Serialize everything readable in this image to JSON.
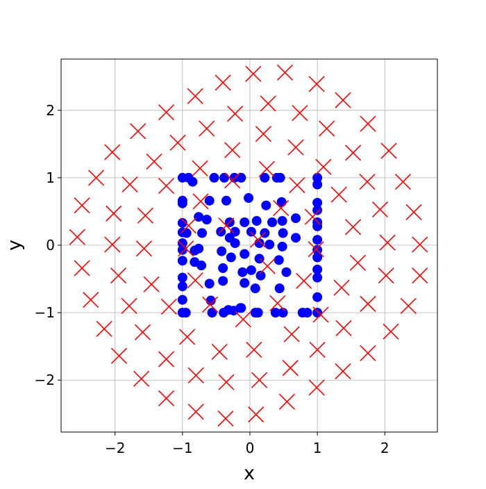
{
  "chart_data": {
    "type": "scatter",
    "xlabel": "x",
    "ylabel": "y",
    "grid": true,
    "xlim": [
      -2.8,
      2.78
    ],
    "ylim": [
      -2.77,
      2.76
    ],
    "xticks": [
      {
        "value": -2,
        "label": "−2"
      },
      {
        "value": -1,
        "label": "−1"
      },
      0,
      1,
      2
    ],
    "yticks": [
      {
        "value": -2,
        "label": "−2"
      },
      {
        "value": -1,
        "label": "−1"
      },
      0,
      1,
      2
    ],
    "series": [
      {
        "color": "#0000ff",
        "marker": "o",
        "x": [
          -1.0,
          -0.91,
          -0.85,
          -0.53,
          -0.38,
          -0.23,
          -0.13,
          0.22,
          0.4,
          0.45,
          1.0,
          1.0,
          -1.0,
          -1.0,
          -1.0,
          -1.0,
          -1.0,
          -1.0,
          -1.0,
          -1.0,
          -1.0,
          -1.0,
          -1.0,
          -0.95,
          -0.56,
          -0.39,
          -0.24,
          -0.13,
          0.08,
          0.12,
          0.38,
          0.49,
          0.78,
          0.85,
          1.0,
          1.0,
          1.0,
          1.0,
          1.0,
          1.0,
          1.0,
          1.0,
          1.0,
          1.0,
          1.0,
          -0.94,
          -0.76,
          -0.64,
          -0.6,
          -0.71,
          -0.76,
          -0.82,
          -0.72,
          -0.6,
          -0.58,
          -0.43,
          -0.35,
          -0.3,
          -0.22,
          -0.3,
          -0.08,
          -0.02,
          0.02,
          0.1,
          0.22,
          0.24,
          0.33,
          0.47,
          0.48,
          0.68,
          0.49,
          0.14,
          0.29,
          0.48,
          0.68,
          -0.42,
          -0.28,
          -0.22,
          -0.08,
          0.02,
          -0.08,
          -0.4,
          -0.4,
          -0.11,
          0.14,
          0.16,
          0.43,
          0.54,
          0.08,
          0.44,
          -0.32,
          -0.14,
          -0.82
        ],
        "values": [
          1.0,
          1.0,
          0.94,
          1.0,
          1.0,
          1.0,
          1.0,
          1.0,
          1.0,
          1.0,
          1.0,
          0.9,
          0.66,
          0.62,
          0.33,
          0.19,
          0.03,
          -0.07,
          -0.23,
          -0.48,
          -0.61,
          -0.81,
          -1.0,
          -1.0,
          -1.0,
          -1.0,
          -0.97,
          -0.93,
          -1.0,
          -1.0,
          -1.0,
          -1.0,
          -1.0,
          -1.0,
          -1.0,
          0.63,
          0.52,
          0.34,
          0.28,
          0.08,
          -0.07,
          -0.18,
          -0.36,
          -0.48,
          -0.77,
          0.18,
          0.42,
          0.38,
          0.66,
          0.18,
          -0.05,
          -0.25,
          -0.3,
          -0.57,
          -0.82,
          0.2,
          0.66,
          0.34,
          0.2,
          0.11,
          0.34,
          0.7,
          0.2,
          0.36,
          0.18,
          0.59,
          0.34,
          0.64,
          0.36,
          0.4,
          0.18,
          0.03,
          0.01,
          -0.02,
          0.11,
          -0.09,
          -0.18,
          0.03,
          -0.13,
          -0.37,
          -0.56,
          -0.34,
          -0.53,
          -0.4,
          -0.2,
          -0.45,
          -0.22,
          -0.4,
          -0.64,
          -0.64,
          -0.96,
          -0.93,
          -0.08
        ]
      },
      {
        "color": "#ff0000",
        "marker": "x",
        "x": [
          0.05,
          0.52,
          0.99,
          1.38,
          1.75,
          2.06,
          2.27,
          2.43,
          2.52,
          2.52,
          2.35,
          2.09,
          1.75,
          1.38,
          0.99,
          0.55,
          0.09,
          -0.36,
          -0.8,
          -1.24,
          -1.61,
          -1.94,
          -2.16,
          -2.36,
          -2.49,
          -2.56,
          -2.49,
          -2.28,
          -2.04,
          -1.66,
          -1.24,
          -0.81,
          -0.4,
          -0.22,
          0.27,
          0.74,
          1.14,
          1.53,
          1.74,
          1.93,
          2.04,
          2.02,
          1.75,
          1.39,
          1.0,
          0.6,
          0.14,
          -0.35,
          -0.8,
          -1.24,
          -1.59,
          -1.79,
          -1.95,
          -2.04,
          -2.02,
          -1.78,
          -1.42,
          -1.07,
          -0.64,
          0.2,
          0.68,
          1.09,
          1.32,
          1.53,
          1.6,
          1.36,
          1.05,
          0.62,
          0.06,
          -0.45,
          -0.93,
          -1.2,
          -1.46,
          -1.57,
          -1.55,
          -1.24,
          -0.74,
          -0.26,
          0.25,
          0.7,
          0.93,
          0.98,
          0.8,
          0.41,
          -0.1,
          -0.59,
          -0.81,
          -0.95,
          -0.91,
          -0.73,
          -0.26,
          0.12,
          -0.35,
          0.26,
          0.46
        ],
        "values": [
          2.54,
          2.56,
          2.39,
          2.15,
          1.8,
          1.4,
          0.94,
          0.49,
          0.01,
          -0.45,
          -0.9,
          -1.28,
          -1.6,
          -1.87,
          -2.11,
          -2.32,
          -2.51,
          -2.57,
          -2.47,
          -2.27,
          -1.98,
          -1.64,
          -1.24,
          -0.81,
          -0.34,
          0.12,
          0.59,
          1.0,
          1.38,
          1.69,
          1.97,
          2.21,
          2.41,
          1.95,
          2.1,
          1.96,
          1.73,
          1.37,
          0.94,
          0.53,
          0.04,
          -0.45,
          -0.87,
          -1.23,
          -1.55,
          -1.82,
          -2.0,
          -2.03,
          -1.93,
          -1.69,
          -1.29,
          -0.9,
          -0.45,
          0.01,
          0.47,
          0.9,
          1.24,
          1.52,
          1.73,
          1.65,
          1.45,
          1.16,
          0.75,
          0.27,
          -0.26,
          -0.63,
          -1.03,
          -1.32,
          -1.55,
          -1.58,
          -1.36,
          -0.91,
          -0.58,
          -0.05,
          0.44,
          0.88,
          1.14,
          1.41,
          1.13,
          0.89,
          0.42,
          -0.06,
          -0.53,
          -0.86,
          -1.1,
          -0.88,
          -0.52,
          -0.05,
          0.29,
          0.65,
          0.96,
          0.08,
          0.29,
          -0.31,
          0.55
        ]
      }
    ]
  }
}
